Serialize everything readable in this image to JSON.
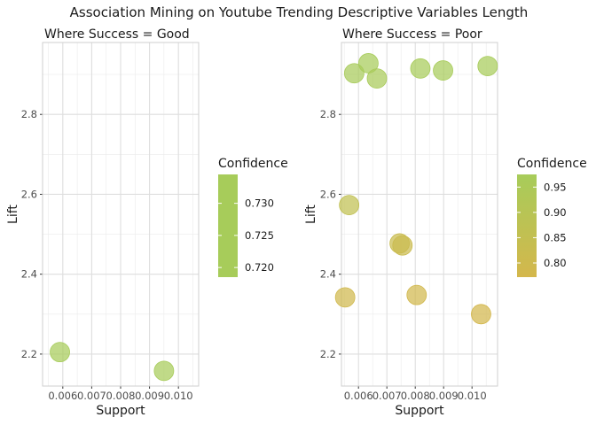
{
  "figure_title": "Association Mining on Youtube Trending Descriptive Variables Length",
  "chart_data": [
    {
      "type": "scatter",
      "title": "Where Success = Good",
      "xlabel": "Support",
      "ylabel": "Lift",
      "xlim": [
        0.0053,
        0.0107
      ],
      "ylim": [
        2.12,
        2.98
      ],
      "x_ticks": [
        0.006,
        0.007,
        0.008,
        0.009,
        0.01
      ],
      "x_tick_labels": [
        "0.006",
        "0.007",
        "0.008",
        "0.009",
        "0.010"
      ],
      "y_ticks": [
        2.2,
        2.4,
        2.6,
        2.8
      ],
      "y_tick_labels": [
        "2.2",
        "2.4",
        "2.6",
        "2.8"
      ],
      "grid": true,
      "legend": {
        "title": "Confidence",
        "placement": "right",
        "range": [
          0.7185,
          0.7345
        ],
        "ticks": [
          0.72,
          0.725,
          0.73
        ],
        "tick_labels": [
          "0.720",
          "0.725",
          "0.730"
        ],
        "color_low": "#a7cc5a",
        "color_high": "#a7cc5a"
      },
      "points": [
        {
          "x": 0.0059,
          "y": 2.205,
          "confidence": 0.733
        },
        {
          "x": 0.0095,
          "y": 2.158,
          "confidence": 0.719
        }
      ]
    },
    {
      "type": "scatter",
      "title": "Where Success = Poor",
      "xlabel": "Support",
      "ylabel": "Lift",
      "xlim": [
        0.0054,
        0.0109
      ],
      "ylim": [
        2.12,
        2.98
      ],
      "x_ticks": [
        0.006,
        0.007,
        0.008,
        0.009,
        0.01
      ],
      "x_tick_labels": [
        "0.006",
        "0.007",
        "0.008",
        "0.009",
        "0.010"
      ],
      "y_ticks": [
        2.2,
        2.4,
        2.6,
        2.8
      ],
      "y_tick_labels": [
        "2.2",
        "2.4",
        "2.6",
        "2.8"
      ],
      "grid": true,
      "legend": {
        "title": "Confidence",
        "placement": "right",
        "range": [
          0.772,
          0.975
        ],
        "ticks": [
          0.8,
          0.85,
          0.9,
          0.95
        ],
        "tick_labels": [
          "0.80",
          "0.85",
          "0.90",
          "0.95"
        ],
        "color_low": "#d4b74c",
        "color_high": "#a7cc5a"
      },
      "points": [
        {
          "x": 0.00585,
          "y": 2.903,
          "confidence": 0.97
        },
        {
          "x": 0.00635,
          "y": 2.928,
          "confidence": 0.975
        },
        {
          "x": 0.00665,
          "y": 2.89,
          "confidence": 0.965
        },
        {
          "x": 0.00818,
          "y": 2.915,
          "confidence": 0.972
        },
        {
          "x": 0.00898,
          "y": 2.91,
          "confidence": 0.972
        },
        {
          "x": 0.01055,
          "y": 2.921,
          "confidence": 0.975
        },
        {
          "x": 0.00567,
          "y": 2.573,
          "confidence": 0.86
        },
        {
          "x": 0.00745,
          "y": 2.477,
          "confidence": 0.82
        },
        {
          "x": 0.00755,
          "y": 2.472,
          "confidence": 0.815
        },
        {
          "x": 0.00553,
          "y": 2.342,
          "confidence": 0.79
        },
        {
          "x": 0.00805,
          "y": 2.348,
          "confidence": 0.785
        },
        {
          "x": 0.01032,
          "y": 2.3,
          "confidence": 0.775
        }
      ]
    }
  ]
}
